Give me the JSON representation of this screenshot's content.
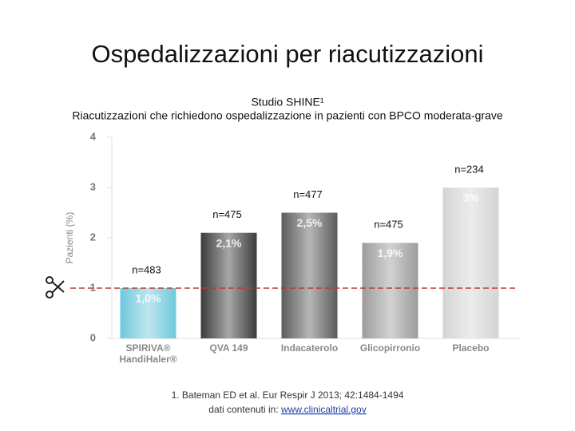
{
  "chart_data": {
    "type": "bar",
    "title": "Ospedalizzazioni per riacutizzazioni",
    "subtitle": "Studio SHINE¹",
    "description": "Riacutizzazioni che richiedono ospedalizzazione in pazienti con BPCO moderata-grave",
    "y_label": "Pazienti (%)",
    "categories": [
      [
        "SPIRIVA®",
        "HandiHaler®"
      ],
      [
        "QVA 149"
      ],
      [
        "Indacaterolo"
      ],
      [
        "Glicopirronio"
      ],
      [
        "Placebo"
      ]
    ],
    "values": [
      1.0,
      2.1,
      2.5,
      1.9,
      3
    ],
    "value_labels": [
      "1,0%",
      "2,1%",
      "2,5%",
      "1,9%",
      "3%"
    ],
    "annotations": [
      "n=483",
      "n=475",
      "n=477",
      "n=475",
      "n=234"
    ],
    "colors": [
      "#6ec8dc",
      "#3c3c3c",
      "#5c5c5c",
      "#9c9c9c",
      "#d4d4d4"
    ],
    "ylim": [
      0,
      4
    ],
    "yticks": [
      0,
      1,
      2,
      3,
      4
    ],
    "reference_line": {
      "value": 1,
      "color": "#c0392b"
    },
    "footnote": [
      "1. Bateman ED et al. Eur Respir J 2013; 42:1484-1494",
      "dati contenuti in: "
    ],
    "link": "www.clinicaltrial.gov"
  }
}
